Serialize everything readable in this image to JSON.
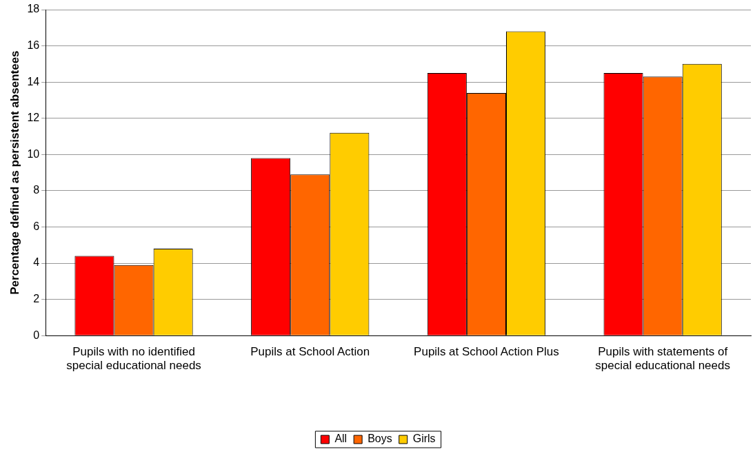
{
  "chart_data": {
    "type": "bar",
    "ylabel": "Percentage defined as persistent absentees",
    "categories": [
      "Pupils with no identified special educational needs",
      "Pupils at School Action",
      "Pupils at School Action Plus",
      "Pupils with statements of special educational needs"
    ],
    "series": [
      {
        "name": "All",
        "color": "#ff0000",
        "values": [
          4.4,
          9.8,
          14.5,
          14.5
        ]
      },
      {
        "name": "Boys",
        "color": "#ff6600",
        "values": [
          3.9,
          8.9,
          13.4,
          14.3
        ]
      },
      {
        "name": "Girls",
        "color": "#ffcc00",
        "values": [
          4.8,
          11.2,
          16.8,
          15.0
        ]
      }
    ],
    "ylim": [
      0,
      18
    ],
    "yticks": [
      0,
      2,
      4,
      6,
      8,
      10,
      12,
      14,
      16,
      18
    ],
    "grid": "y",
    "legend": "bottom"
  }
}
